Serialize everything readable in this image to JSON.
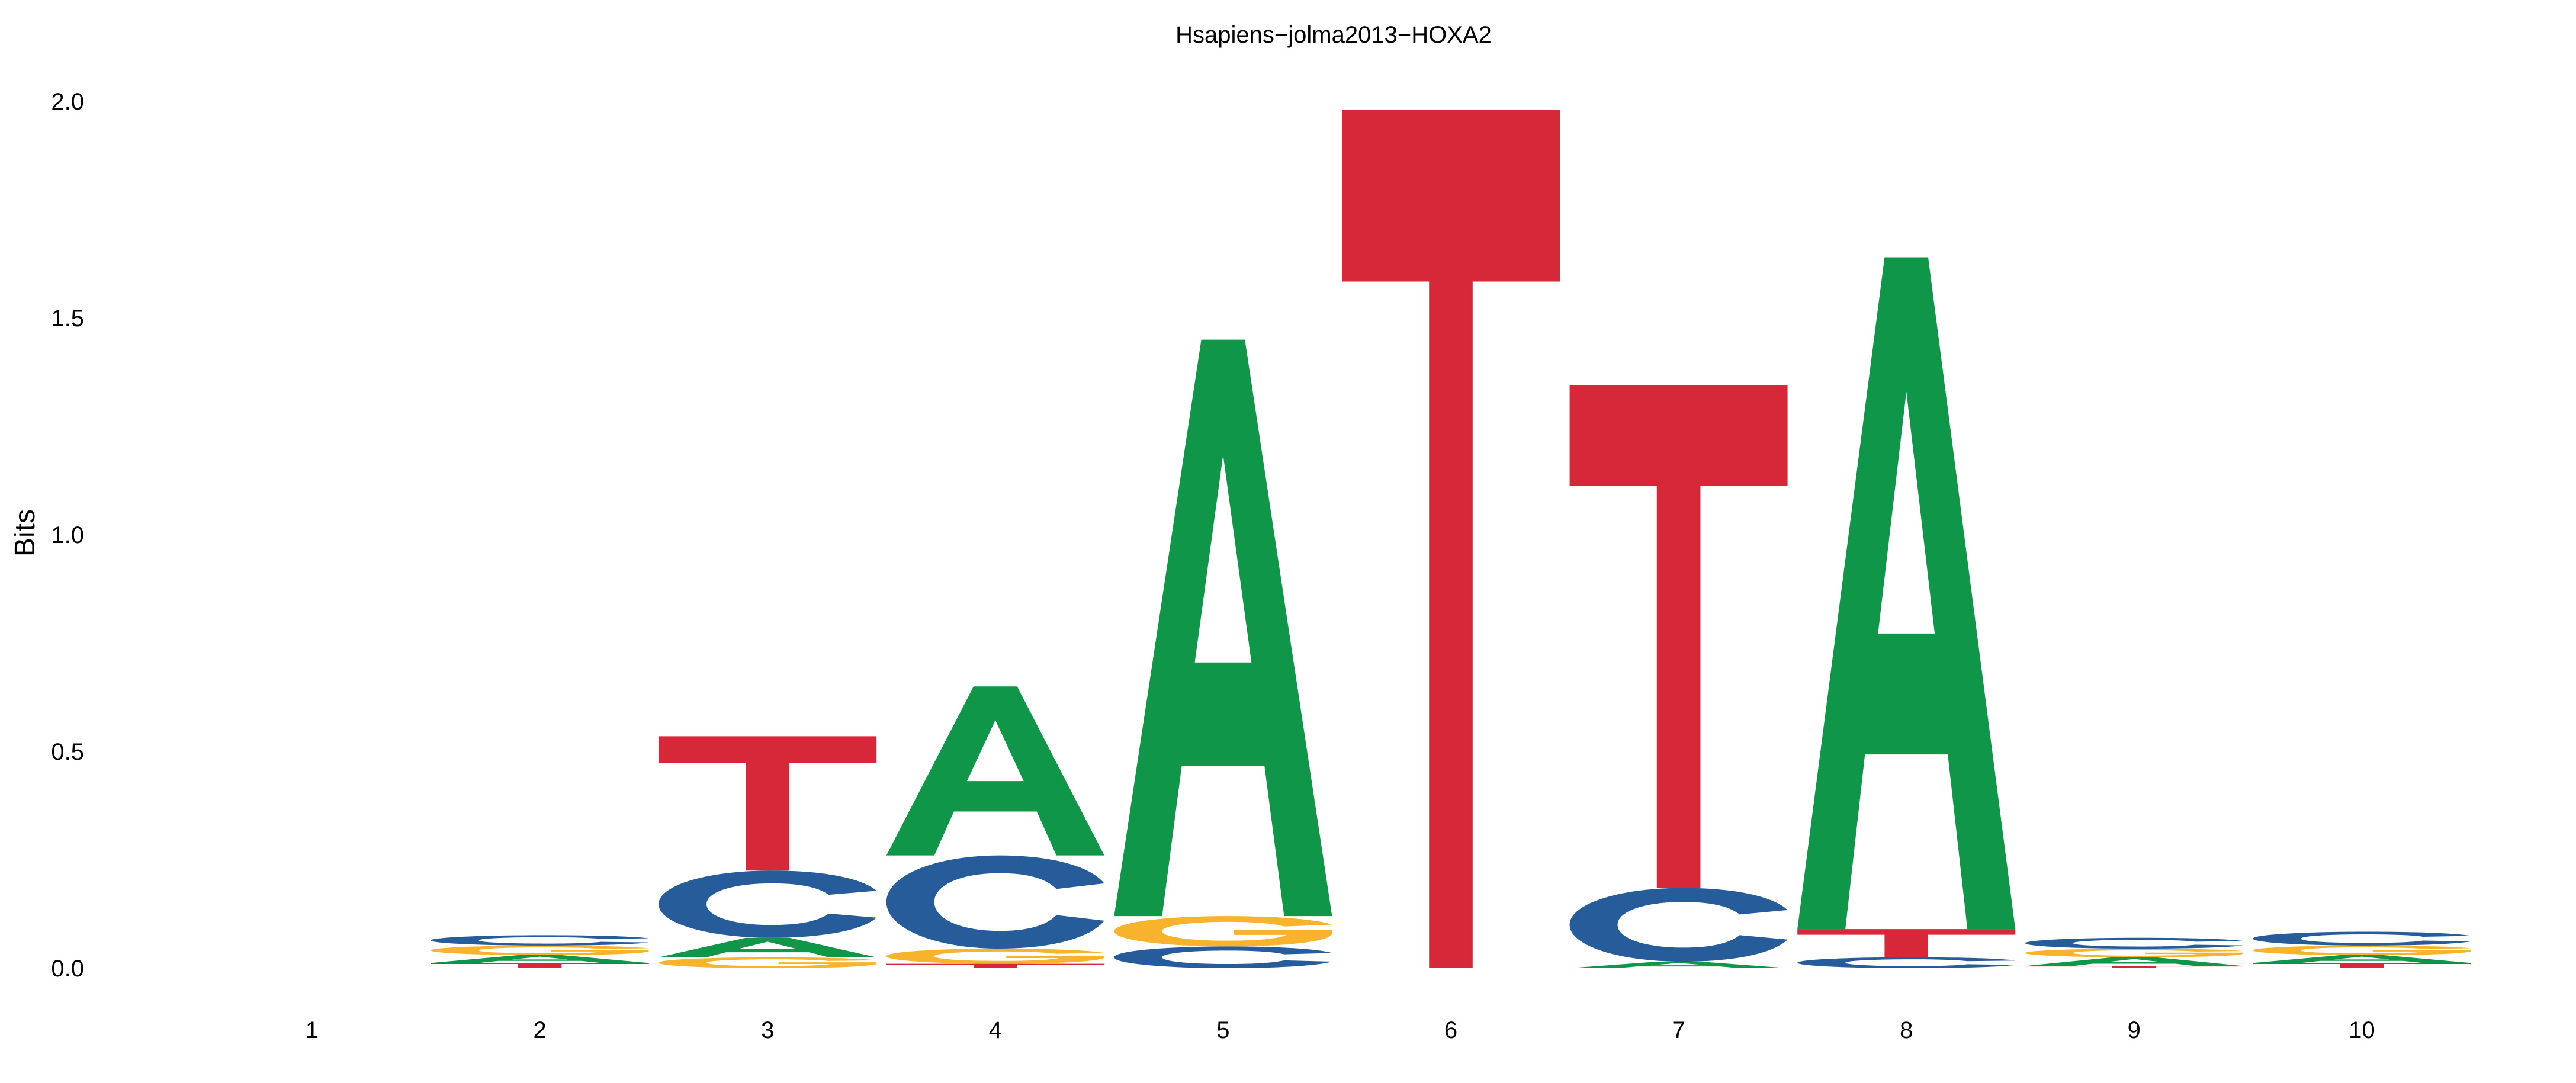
{
  "chart_data": {
    "type": "sequence-logo",
    "title": "Hsapiens−jolma2013−HOXA2",
    "ylabel": "Bits",
    "ylim": [
      0,
      2.0
    ],
    "yticks": [
      "0.0",
      "0.5",
      "1.0",
      "1.5",
      "2.0"
    ],
    "positions": [
      "1",
      "2",
      "3",
      "4",
      "5",
      "6",
      "7",
      "8",
      "9",
      "10"
    ],
    "grid": false,
    "colors": {
      "A": "#109648",
      "C": "#255C99",
      "G": "#F7B32B",
      "T": "#D62839"
    },
    "stacks": [
      [],
      [
        [
          "T",
          0.012
        ],
        [
          "A",
          0.018
        ],
        [
          "G",
          0.022
        ],
        [
          "C",
          0.024
        ]
      ],
      [
        [
          "G",
          0.025
        ],
        [
          "A",
          0.045
        ],
        [
          "C",
          0.155
        ],
        [
          "T",
          0.31
        ]
      ],
      [
        [
          "T",
          0.01
        ],
        [
          "G",
          0.035
        ],
        [
          "C",
          0.215
        ],
        [
          "A",
          0.39
        ]
      ],
      [
        [
          "C",
          0.05
        ],
        [
          "G",
          0.07
        ],
        [
          "A",
          1.33
        ]
      ],
      [
        [
          "T",
          1.98
        ]
      ],
      [
        [
          "A",
          0.015
        ],
        [
          "C",
          0.17
        ],
        [
          "T",
          1.16
        ]
      ],
      [
        [
          "C",
          0.025
        ],
        [
          "T",
          0.065
        ],
        [
          "A",
          1.55
        ]
      ],
      [
        [
          "T",
          0.005
        ],
        [
          "A",
          0.02
        ],
        [
          "G",
          0.02
        ],
        [
          "C",
          0.025
        ]
      ],
      [
        [
          "T",
          0.012
        ],
        [
          "A",
          0.018
        ],
        [
          "G",
          0.022
        ],
        [
          "C",
          0.032
        ]
      ]
    ]
  }
}
